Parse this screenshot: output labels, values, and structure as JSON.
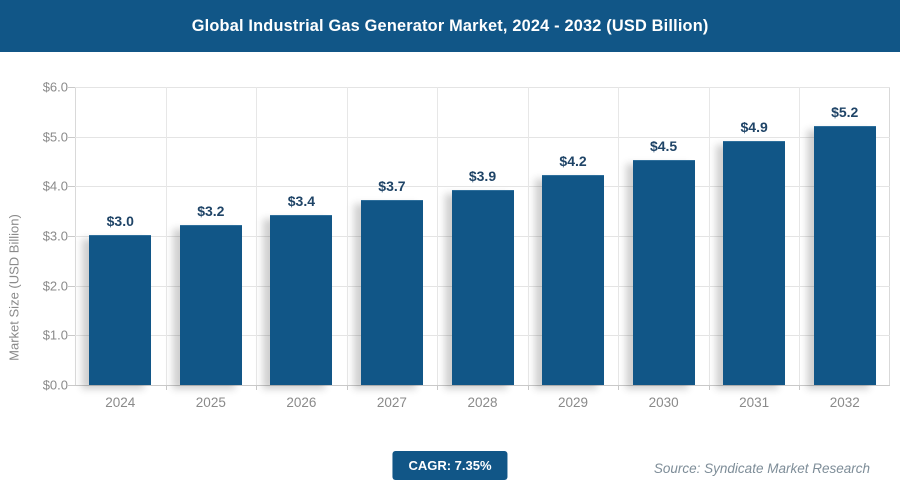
{
  "header": {
    "title": "Global Industrial Gas Generator Market, 2024 - 2032 (USD Billion)",
    "bg_color": "#115687",
    "text_color": "#ffffff"
  },
  "chart_data": {
    "type": "bar",
    "title": "Global Industrial Gas Generator Market, 2024 - 2032 (USD Billion)",
    "categories": [
      "2024",
      "2025",
      "2026",
      "2027",
      "2028",
      "2029",
      "2030",
      "2031",
      "2032"
    ],
    "values": [
      3.0,
      3.2,
      3.4,
      3.7,
      3.9,
      4.2,
      4.5,
      4.9,
      5.2
    ],
    "value_labels": [
      "$3.0",
      "$3.2",
      "$3.4",
      "$3.7",
      "$3.9",
      "$4.2",
      "$4.5",
      "$4.9",
      "$5.2"
    ],
    "xlabel": "",
    "ylabel": "Market Size (USD Billion)",
    "ylim": [
      0,
      6
    ],
    "y_tick_labels": [
      "$0.0",
      "$1.0",
      "$2.0",
      "$3.0",
      "$4.0",
      "$5.0",
      "$6.0"
    ],
    "grid": "on",
    "legend": "none",
    "bar_color": "#115687",
    "value_label_color": "#1f4467",
    "axis_text_color": "#8a8a8a",
    "gridline_color": "#e4e4e4"
  },
  "footer": {
    "cagr_label": "CAGR: 7.35%",
    "source_text": "Source: Syndicate Market Research"
  }
}
